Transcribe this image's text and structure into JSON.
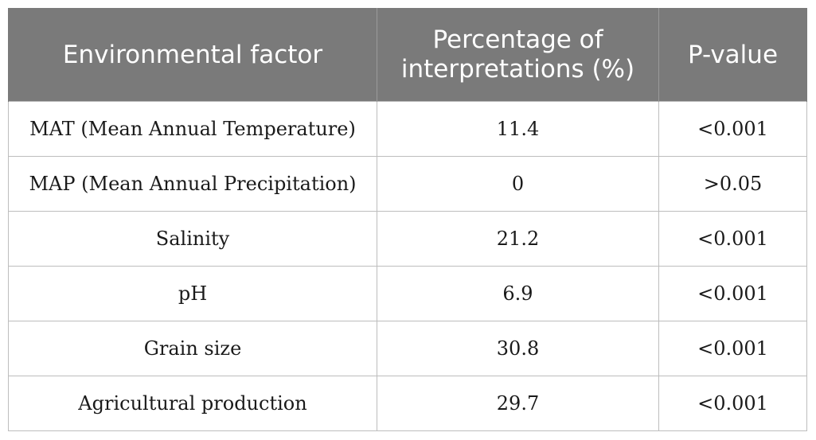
{
  "table": {
    "headers": [
      "Environmental factor",
      "Percentage of interpretations (%)",
      "P-value"
    ],
    "rows": [
      [
        "MAT (Mean Annual Temperature)",
        "11.4",
        "<0.001"
      ],
      [
        "MAP (Mean Annual Precipitation)",
        "0",
        ">0.05"
      ],
      [
        "Salinity",
        "21.2",
        "<0.001"
      ],
      [
        "pH",
        "6.9",
        "<0.001"
      ],
      [
        "Grain size",
        "30.8",
        "<0.001"
      ],
      [
        "Agricultural production",
        "29.7",
        "<0.001"
      ]
    ]
  }
}
